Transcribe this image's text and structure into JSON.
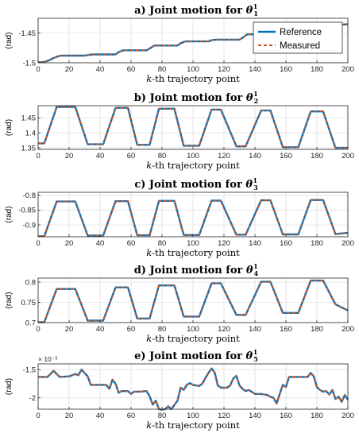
{
  "chart_data": [
    {
      "type": "line",
      "panel": "a",
      "title_prefix": "a) Joint motion for ",
      "theta_sub": "1",
      "theta_sup": "1",
      "xlabel_italic": "k",
      "xlabel_rest": "-th trajectory point",
      "ylabel": "(rad)",
      "xlim": [
        0,
        200
      ],
      "ylim": [
        -1.5,
        -1.425
      ],
      "xticks": [
        "0",
        "20",
        "40",
        "60",
        "80",
        "100",
        "120",
        "140",
        "160",
        "180",
        "200"
      ],
      "yticks": [
        {
          "v": -1.45,
          "label": "-1.45"
        },
        {
          "v": -1.5,
          "label": "-1.5"
        }
      ],
      "y_multiplier": "",
      "legend": {
        "placement": "top-right",
        "entries": [
          "Reference",
          "Measured"
        ]
      },
      "grid": true,
      "series_x": [
        0,
        2,
        4,
        7,
        10,
        13,
        15,
        30,
        32,
        35,
        50,
        52,
        55,
        70,
        72,
        75,
        90,
        92,
        95,
        110,
        112,
        115,
        130,
        132,
        135,
        150,
        152,
        155,
        170,
        172,
        175,
        190,
        192,
        195,
        200
      ],
      "series": [
        {
          "values": [
            -1.499,
            -1.499,
            -1.4985,
            -1.496,
            -1.492,
            -1.489,
            -1.488,
            -1.488,
            -1.487,
            -1.486,
            -1.486,
            -1.482,
            -1.479,
            -1.479,
            -1.476,
            -1.471,
            -1.471,
            -1.467,
            -1.464,
            -1.464,
            -1.462,
            -1.461,
            -1.461,
            -1.458,
            -1.452,
            -1.452,
            -1.45,
            -1.448,
            -1.448,
            -1.443,
            -1.44,
            -1.44,
            -1.437,
            -1.436,
            -1.435
          ]
        }
      ]
    },
    {
      "type": "line",
      "panel": "b",
      "title_prefix": "b) Joint motion for ",
      "theta_sub": "2",
      "theta_sup": "1",
      "xlabel_italic": "k",
      "xlabel_rest": "-th trajectory point",
      "ylabel": "(rad)",
      "xlim": [
        0,
        200
      ],
      "ylim": [
        1.345,
        1.49
      ],
      "xticks": [
        "0",
        "20",
        "40",
        "60",
        "80",
        "100",
        "120",
        "140",
        "160",
        "180",
        "200"
      ],
      "yticks": [
        {
          "v": 1.45,
          "label": "1.45"
        },
        {
          "v": 1.4,
          "label": "1.4"
        },
        {
          "v": 1.35,
          "label": "1.35"
        }
      ],
      "y_multiplier": "",
      "legend": null,
      "grid": true,
      "series_x": [
        0,
        4,
        12,
        24,
        32,
        42,
        50,
        58,
        64,
        72,
        78,
        88,
        94,
        104,
        112,
        118,
        128,
        134,
        144,
        150,
        158,
        168,
        176,
        184,
        192,
        200
      ],
      "series": [
        {
          "values": [
            1.365,
            1.365,
            1.486,
            1.486,
            1.362,
            1.362,
            1.483,
            1.483,
            1.36,
            1.36,
            1.48,
            1.48,
            1.357,
            1.357,
            1.477,
            1.477,
            1.355,
            1.355,
            1.474,
            1.474,
            1.352,
            1.352,
            1.471,
            1.471,
            1.35,
            1.35
          ]
        }
      ]
    },
    {
      "type": "line",
      "panel": "c",
      "title_prefix": "c) Joint motion for ",
      "theta_sub": "3",
      "theta_sup": "1",
      "xlabel_italic": "k",
      "xlabel_rest": "-th trajectory point",
      "ylabel": "(rad)",
      "xlim": [
        0,
        200
      ],
      "ylim": [
        -0.94,
        -0.79
      ],
      "xticks": [
        "0",
        "20",
        "40",
        "60",
        "80",
        "100",
        "120",
        "140",
        "160",
        "180",
        "200"
      ],
      "yticks": [
        {
          "v": -0.8,
          "label": "-0.8"
        },
        {
          "v": -0.85,
          "label": "-0.85"
        },
        {
          "v": -0.9,
          "label": "-0.9"
        }
      ],
      "y_multiplier": "",
      "legend": null,
      "grid": true,
      "series_x": [
        0,
        4,
        12,
        24,
        32,
        42,
        50,
        58,
        64,
        72,
        78,
        88,
        94,
        104,
        112,
        118,
        128,
        134,
        144,
        150,
        158,
        168,
        176,
        184,
        192,
        200
      ],
      "series": [
        {
          "values": [
            -0.938,
            -0.938,
            -0.821,
            -0.821,
            -0.936,
            -0.936,
            -0.82,
            -0.82,
            -0.935,
            -0.935,
            -0.819,
            -0.819,
            -0.934,
            -0.934,
            -0.818,
            -0.818,
            -0.933,
            -0.933,
            -0.817,
            -0.817,
            -0.932,
            -0.932,
            -0.816,
            -0.816,
            -0.931,
            -0.927
          ]
        }
      ]
    },
    {
      "type": "line",
      "panel": "d",
      "title_prefix": "d) Joint motion for ",
      "theta_sub": "4",
      "theta_sup": "1",
      "xlabel_italic": "k",
      "xlabel_rest": "-th trajectory point",
      "ylabel": "(rad)",
      "xlim": [
        0,
        200
      ],
      "ylim": [
        0.7,
        0.81
      ],
      "xticks": [
        "0",
        "20",
        "40",
        "60",
        "80",
        "100",
        "120",
        "140",
        "160",
        "180",
        "200"
      ],
      "yticks": [
        {
          "v": 0.8,
          "label": "0.8"
        },
        {
          "v": 0.75,
          "label": "0.75"
        },
        {
          "v": 0.7,
          "label": "0.7"
        }
      ],
      "y_multiplier": "",
      "legend": null,
      "grid": true,
      "series_x": [
        0,
        4,
        12,
        24,
        32,
        42,
        50,
        58,
        64,
        72,
        78,
        88,
        94,
        104,
        112,
        118,
        128,
        134,
        144,
        150,
        158,
        168,
        176,
        184,
        192,
        200
      ],
      "series": [
        {
          "values": [
            0.701,
            0.701,
            0.783,
            0.783,
            0.705,
            0.705,
            0.787,
            0.787,
            0.71,
            0.71,
            0.792,
            0.792,
            0.715,
            0.715,
            0.797,
            0.797,
            0.719,
            0.719,
            0.801,
            0.801,
            0.724,
            0.724,
            0.804,
            0.804,
            0.745,
            0.73
          ]
        }
      ]
    },
    {
      "type": "line",
      "panel": "e",
      "title_prefix": "e) Joint motion for ",
      "theta_sub": "5",
      "theta_sup": "1",
      "xlabel_italic": "k",
      "xlabel_rest": "-th trajectory point",
      "ylabel": "(rad)",
      "xlim": [
        0,
        200
      ],
      "ylim": [
        -2.2,
        -1.4
      ],
      "xticks": [
        "0",
        "20",
        "40",
        "60",
        "80",
        "100",
        "120",
        "140",
        "160",
        "180",
        "200"
      ],
      "yticks": [
        {
          "v": -1.5,
          "label": "-1.5"
        },
        {
          "v": -2.0,
          "label": "-2"
        }
      ],
      "y_multiplier": "× 10⁻³",
      "legend": null,
      "grid": true,
      "series_x": [
        0,
        6,
        8,
        10,
        12,
        14,
        20,
        24,
        26,
        28,
        30,
        32,
        34,
        44,
        46,
        48,
        50,
        52,
        54,
        58,
        60,
        62,
        66,
        70,
        72,
        74,
        76,
        78,
        80,
        82,
        84,
        86,
        90,
        92,
        94,
        96,
        98,
        100,
        104,
        106,
        108,
        110,
        112,
        114,
        116,
        118,
        122,
        124,
        126,
        128,
        130,
        132,
        134,
        136,
        140,
        144,
        148,
        150,
        152,
        154,
        156,
        158,
        160,
        162,
        174,
        176,
        178,
        180,
        182,
        184,
        186,
        188,
        190,
        192,
        194,
        196,
        198,
        200
      ],
      "series": [
        {
          "values": [
            -1.63,
            -1.63,
            -1.58,
            -1.52,
            -1.58,
            -1.63,
            -1.62,
            -1.58,
            -1.6,
            -1.5,
            -1.56,
            -1.62,
            -1.77,
            -1.77,
            -1.84,
            -1.68,
            -1.75,
            -1.91,
            -1.88,
            -1.88,
            -1.93,
            -1.89,
            -1.89,
            -1.88,
            -1.97,
            -2.12,
            -2.05,
            -2.2,
            -2.21,
            -2.2,
            -2.15,
            -2.2,
            -2.05,
            -1.82,
            -1.86,
            -1.77,
            -1.74,
            -1.77,
            -1.79,
            -1.75,
            -1.65,
            -1.56,
            -1.48,
            -1.55,
            -1.78,
            -1.82,
            -1.82,
            -1.78,
            -1.66,
            -1.61,
            -1.78,
            -1.84,
            -1.88,
            -1.86,
            -1.93,
            -1.93,
            -1.95,
            -1.98,
            -2.0,
            -2.1,
            -1.93,
            -1.77,
            -1.81,
            -1.63,
            -1.63,
            -1.56,
            -1.62,
            -1.81,
            -1.86,
            -1.89,
            -1.88,
            -1.94,
            -1.86,
            -2.02,
            -1.98,
            -2.07,
            -1.95,
            -2.03
          ]
        }
      ]
    }
  ],
  "colors": {
    "reference": "#0072BD",
    "measured": "#D95319",
    "grid": "#dcdcdc",
    "axis": "#262626"
  }
}
